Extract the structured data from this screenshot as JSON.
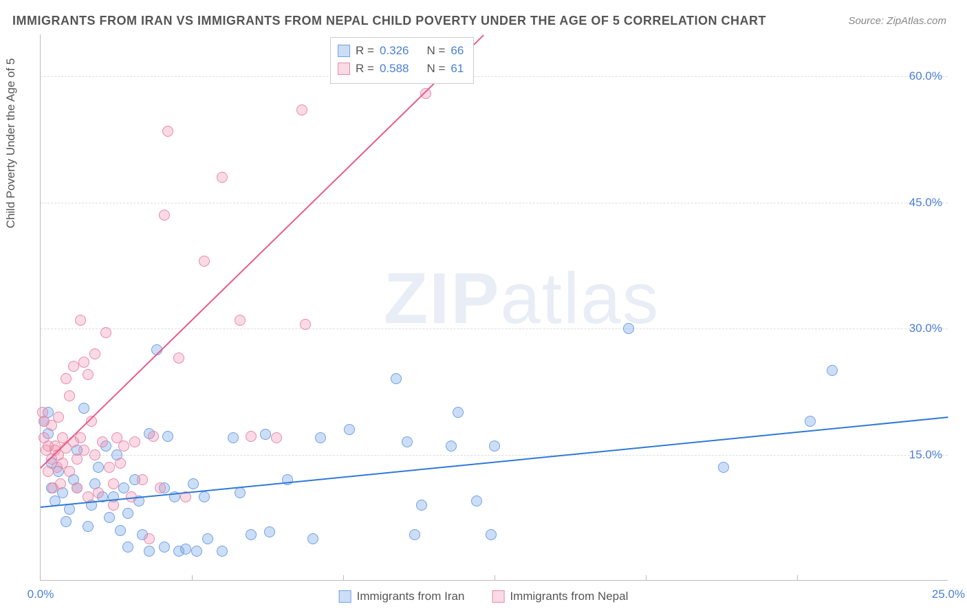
{
  "title": "IMMIGRANTS FROM IRAN VS IMMIGRANTS FROM NEPAL CHILD POVERTY UNDER THE AGE OF 5 CORRELATION CHART",
  "source": "Source: ZipAtlas.com",
  "ylabel": "Child Poverty Under the Age of 5",
  "watermark_bold": "ZIP",
  "watermark_light": "atlas",
  "chart": {
    "type": "scatter",
    "xlim": [
      0,
      25
    ],
    "ylim": [
      0,
      65
    ],
    "xticks": [
      {
        "v": 0,
        "label": "0.0%"
      },
      {
        "v": 25,
        "label": "25.0%"
      }
    ],
    "yticks": [
      {
        "v": 15,
        "label": "15.0%"
      },
      {
        "v": 30,
        "label": "30.0%"
      },
      {
        "v": 45,
        "label": "45.0%"
      },
      {
        "v": 60,
        "label": "60.0%"
      }
    ],
    "x_innerticks": [
      4.17,
      8.33,
      12.5,
      16.67,
      20.83
    ],
    "grid_color": "#dddddd",
    "background_color": "#ffffff",
    "series": [
      {
        "name": "Immigrants from Iran",
        "marker_fill": "rgba(110,160,230,0.35)",
        "marker_stroke": "#6fa0e6",
        "marker_radius": 8,
        "trend_color": "#2e79d6",
        "trend_width": 2,
        "trend": {
          "x1": 0,
          "y1": 8.8,
          "x2": 25,
          "y2": 19.5
        },
        "R": "0.326",
        "N": "66",
        "points": [
          [
            0.1,
            19.0
          ],
          [
            0.2,
            20.0
          ],
          [
            0.2,
            17.5
          ],
          [
            0.3,
            14.0
          ],
          [
            0.3,
            11.0
          ],
          [
            0.4,
            9.5
          ],
          [
            0.5,
            13.0
          ],
          [
            0.6,
            10.5
          ],
          [
            0.7,
            7.0
          ],
          [
            0.8,
            8.5
          ],
          [
            0.9,
            12.0
          ],
          [
            1.0,
            15.5
          ],
          [
            1.0,
            11.0
          ],
          [
            1.2,
            20.5
          ],
          [
            1.3,
            6.5
          ],
          [
            1.4,
            9.0
          ],
          [
            1.5,
            11.5
          ],
          [
            1.6,
            13.5
          ],
          [
            1.7,
            10.0
          ],
          [
            1.8,
            16.0
          ],
          [
            1.9,
            7.5
          ],
          [
            2.0,
            10.0
          ],
          [
            2.1,
            15.0
          ],
          [
            2.2,
            6.0
          ],
          [
            2.3,
            11.0
          ],
          [
            2.4,
            8.0
          ],
          [
            2.4,
            4.0
          ],
          [
            2.6,
            12.0
          ],
          [
            2.7,
            9.5
          ],
          [
            2.8,
            5.5
          ],
          [
            3.0,
            3.5
          ],
          [
            3.0,
            17.5
          ],
          [
            3.2,
            27.5
          ],
          [
            3.4,
            11.0
          ],
          [
            3.4,
            4.0
          ],
          [
            3.5,
            17.2
          ],
          [
            3.7,
            10.0
          ],
          [
            3.8,
            3.5
          ],
          [
            4.0,
            3.8
          ],
          [
            4.2,
            11.5
          ],
          [
            4.3,
            3.5
          ],
          [
            4.5,
            10.0
          ],
          [
            4.6,
            5.0
          ],
          [
            5.0,
            3.5
          ],
          [
            5.3,
            17.0
          ],
          [
            5.5,
            10.5
          ],
          [
            5.8,
            5.5
          ],
          [
            6.2,
            17.4
          ],
          [
            6.3,
            5.8
          ],
          [
            6.8,
            12.0
          ],
          [
            7.5,
            5.0
          ],
          [
            7.7,
            17.0
          ],
          [
            8.5,
            18.0
          ],
          [
            9.8,
            24.0
          ],
          [
            10.1,
            16.5
          ],
          [
            10.3,
            5.5
          ],
          [
            10.5,
            9.0
          ],
          [
            11.3,
            16.0
          ],
          [
            11.5,
            20.0
          ],
          [
            12.0,
            9.5
          ],
          [
            12.4,
            5.5
          ],
          [
            12.5,
            16.0
          ],
          [
            16.2,
            30.0
          ],
          [
            18.8,
            13.5
          ],
          [
            21.2,
            19.0
          ],
          [
            21.8,
            25.0
          ]
        ]
      },
      {
        "name": "Immigrants from Nepal",
        "marker_fill": "rgba(240,140,170,0.32)",
        "marker_stroke": "#e88aa8",
        "marker_radius": 8,
        "trend_color": "#e85a8a",
        "trend_width": 2,
        "trend": {
          "x1": 0,
          "y1": 13.5,
          "x2": 12.2,
          "y2": 65.0
        },
        "R": "0.588",
        "N": "61",
        "points": [
          [
            0.05,
            20.0
          ],
          [
            0.1,
            19.0
          ],
          [
            0.1,
            17.0
          ],
          [
            0.15,
            15.5
          ],
          [
            0.2,
            16.0
          ],
          [
            0.2,
            13.0
          ],
          [
            0.3,
            14.5
          ],
          [
            0.3,
            18.5
          ],
          [
            0.35,
            11.0
          ],
          [
            0.4,
            16.0
          ],
          [
            0.4,
            15.5
          ],
          [
            0.45,
            13.5
          ],
          [
            0.5,
            19.5
          ],
          [
            0.5,
            15.0
          ],
          [
            0.55,
            11.5
          ],
          [
            0.6,
            17.0
          ],
          [
            0.6,
            14.0
          ],
          [
            0.7,
            24.0
          ],
          [
            0.7,
            15.8
          ],
          [
            0.8,
            22.0
          ],
          [
            0.8,
            13.0
          ],
          [
            0.9,
            16.5
          ],
          [
            0.9,
            25.5
          ],
          [
            1.0,
            14.5
          ],
          [
            1.0,
            11.0
          ],
          [
            1.1,
            17.0
          ],
          [
            1.1,
            31.0
          ],
          [
            1.2,
            26.0
          ],
          [
            1.2,
            15.5
          ],
          [
            1.3,
            10.0
          ],
          [
            1.3,
            24.5
          ],
          [
            1.4,
            19.0
          ],
          [
            1.5,
            27.0
          ],
          [
            1.5,
            15.0
          ],
          [
            1.6,
            10.5
          ],
          [
            1.7,
            16.5
          ],
          [
            1.8,
            29.5
          ],
          [
            1.9,
            13.5
          ],
          [
            2.0,
            11.5
          ],
          [
            2.0,
            9.0
          ],
          [
            2.1,
            17.0
          ],
          [
            2.2,
            14.0
          ],
          [
            2.3,
            16.0
          ],
          [
            2.5,
            10.0
          ],
          [
            2.6,
            16.5
          ],
          [
            2.8,
            12.0
          ],
          [
            3.0,
            5.0
          ],
          [
            3.1,
            17.2
          ],
          [
            3.3,
            11.0
          ],
          [
            3.4,
            43.5
          ],
          [
            3.5,
            53.5
          ],
          [
            3.8,
            26.5
          ],
          [
            4.0,
            10.0
          ],
          [
            4.5,
            38.0
          ],
          [
            5.0,
            48.0
          ],
          [
            5.5,
            31.0
          ],
          [
            5.8,
            17.2
          ],
          [
            6.5,
            17.0
          ],
          [
            7.2,
            56.0
          ],
          [
            7.3,
            30.5
          ],
          [
            10.6,
            58.0
          ]
        ]
      }
    ]
  },
  "legend_bottom": [
    {
      "label": "Immigrants from Iran",
      "fill": "rgba(110,160,230,0.35)",
      "stroke": "#6fa0e6"
    },
    {
      "label": "Immigrants from Nepal",
      "fill": "rgba(240,140,170,0.32)",
      "stroke": "#e88aa8"
    }
  ]
}
